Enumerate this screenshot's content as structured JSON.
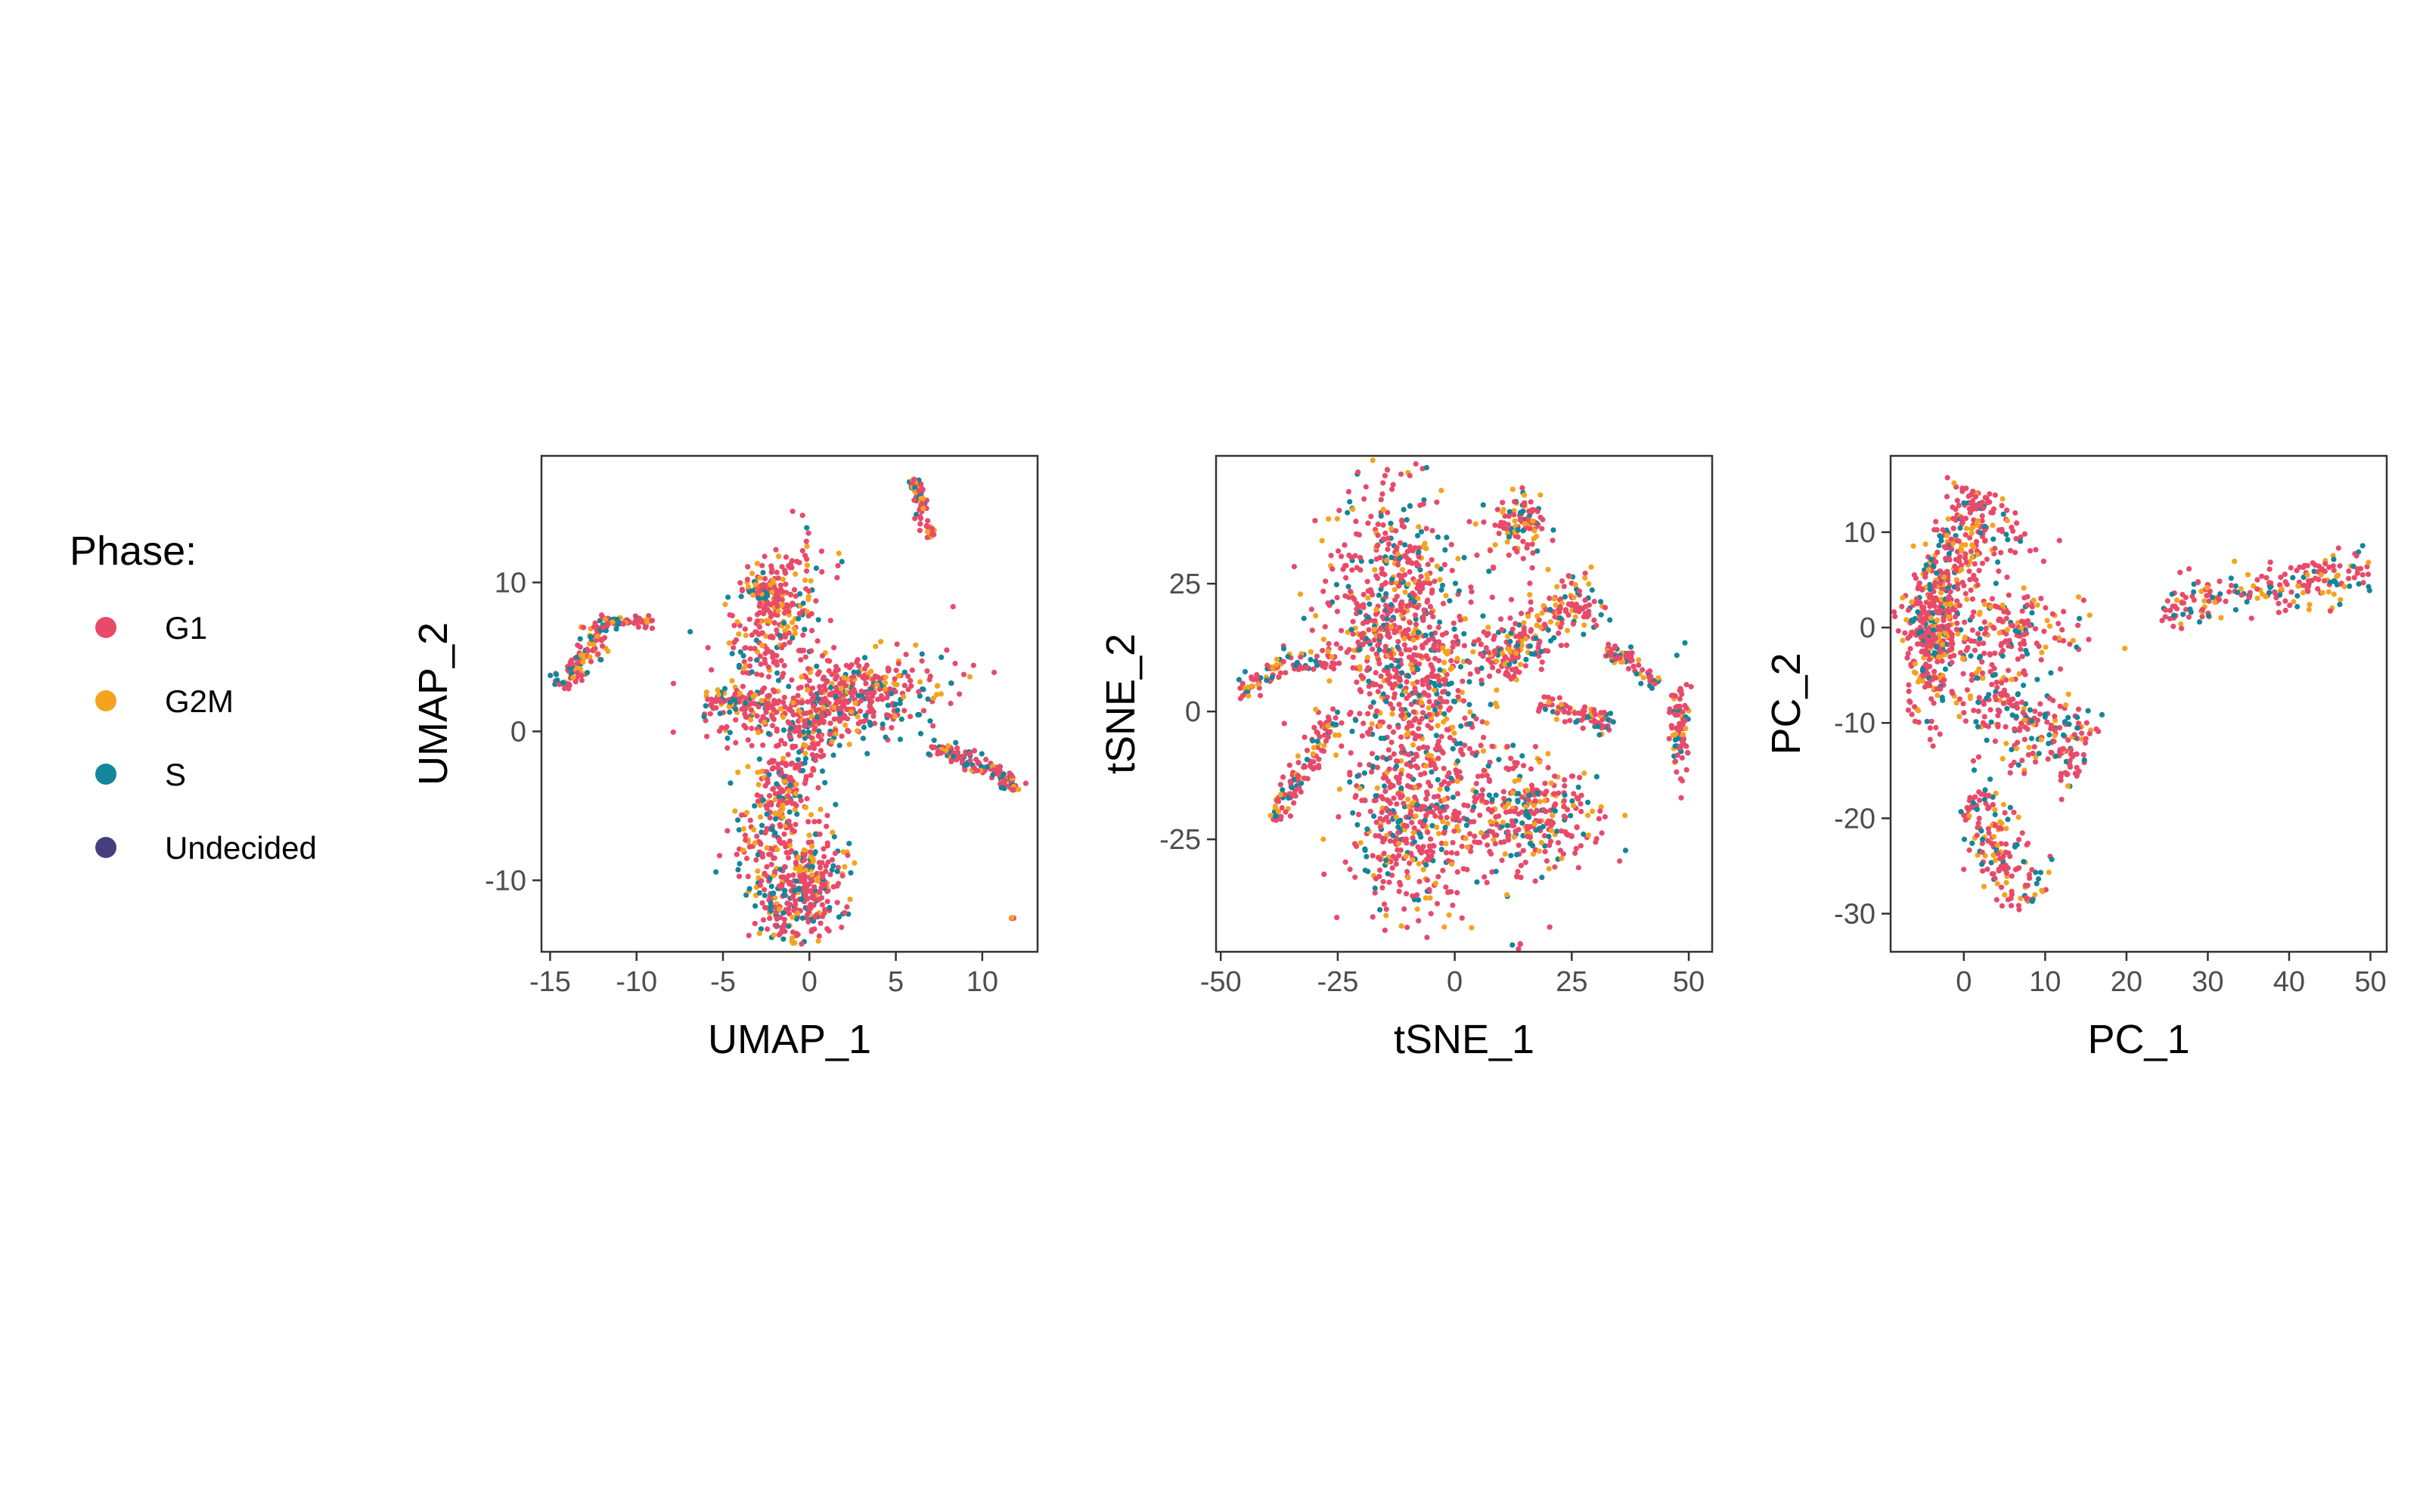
{
  "legend": {
    "title": "Phase:",
    "items": [
      {
        "label": "G1",
        "color": "#E84A6A"
      },
      {
        "label": "G2M",
        "color": "#F5A31E"
      },
      {
        "label": "S",
        "color": "#13869B"
      },
      {
        "label": "Undecided",
        "color": "#453F7C"
      }
    ]
  },
  "chart_data": [
    {
      "type": "scatter",
      "xlabel": "UMAP_1",
      "ylabel": "UMAP_2",
      "xlim": [
        -15.5,
        13.2
      ],
      "ylim": [
        -14.8,
        18.5
      ],
      "xticks": [
        -15,
        -10,
        -5,
        0,
        5,
        10
      ],
      "xtick_labels": [
        "-15",
        "-10",
        "-5",
        "0",
        "5",
        "10"
      ],
      "yticks": [
        -10,
        0,
        10
      ],
      "ytick_labels": [
        "-10",
        "0",
        "10"
      ],
      "grid": false,
      "series": [
        {
          "name": "G1",
          "color": "#E84A6A",
          "share": 0.62
        },
        {
          "name": "G2M",
          "color": "#F5A31E",
          "share": 0.19
        },
        {
          "name": "S",
          "color": "#13869B",
          "share": 0.19
        }
      ],
      "clusters": [
        {
          "shape": "blob",
          "center": [
            -2.0,
            7.5
          ],
          "spread": [
            1.2,
            2.6
          ],
          "rot": -20,
          "n": 260
        },
        {
          "shape": "blob",
          "center": [
            1.5,
            2.0
          ],
          "spread": [
            3.2,
            1.3
          ],
          "rot": 15,
          "n": 520
        },
        {
          "shape": "blob",
          "center": [
            -1.5,
            -4.0
          ],
          "spread": [
            0.9,
            3.0
          ],
          "rot": -20,
          "n": 280
        },
        {
          "shape": "blob",
          "center": [
            0.0,
            -10.0
          ],
          "spread": [
            1.1,
            1.8
          ],
          "rot": 0,
          "n": 260
        },
        {
          "shape": "blob",
          "center": [
            -1.8,
            -11.5
          ],
          "spread": [
            0.7,
            1.4
          ],
          "rot": 0,
          "n": 110
        },
        {
          "shape": "segment",
          "from": [
            -4.0,
            9.5
          ],
          "to": [
            -1.5,
            9.5
          ],
          "width": 0.4,
          "n": 60
        },
        {
          "shape": "segment",
          "from": [
            -6.0,
            2.0
          ],
          "to": [
            -2.0,
            2.0
          ],
          "width": 0.4,
          "n": 80
        },
        {
          "shape": "segment",
          "from": [
            -14.5,
            3.0
          ],
          "to": [
            -11.5,
            7.5
          ],
          "width": 0.45,
          "n": 130
        },
        {
          "shape": "segment",
          "from": [
            -11.5,
            7.5
          ],
          "to": [
            -9.0,
            7.3
          ],
          "width": 0.15,
          "n": 50
        },
        {
          "shape": "segment",
          "from": [
            6.1,
            17.0
          ],
          "to": [
            7.0,
            13.0
          ],
          "width": 0.2,
          "n": 70
        },
        {
          "shape": "segment",
          "from": [
            7.0,
            -1.0
          ],
          "to": [
            11.5,
            -3.0
          ],
          "width": 0.3,
          "n": 110
        },
        {
          "shape": "segment",
          "from": [
            11.5,
            -3.0
          ],
          "to": [
            11.8,
            -4.0
          ],
          "width": 0.3,
          "n": 30
        },
        {
          "shape": "blob",
          "center": [
            11.8,
            -12.5
          ],
          "spread": [
            0.1,
            0.1
          ],
          "rot": 0,
          "n": 3
        }
      ]
    },
    {
      "type": "scatter",
      "xlabel": "tSNE_1",
      "ylabel": "tSNE_2",
      "xlim": [
        -51,
        55
      ],
      "ylim": [
        -47,
        50
      ],
      "xticks": [
        -50,
        -25,
        0,
        25,
        50
      ],
      "xtick_labels": [
        "-50",
        "-25",
        "0",
        "25",
        "50"
      ],
      "yticks": [
        -25,
        0,
        25
      ],
      "ytick_labels": [
        "-25",
        "0",
        "25"
      ],
      "grid": false,
      "series": [
        {
          "name": "G1",
          "color": "#E84A6A",
          "share": 0.62
        },
        {
          "name": "G2M",
          "color": "#F5A31E",
          "share": 0.19
        },
        {
          "name": "S",
          "color": "#13869B",
          "share": 0.19
        }
      ],
      "clusters": [
        {
          "shape": "blob",
          "center": [
            -13,
            18
          ],
          "spread": [
            7.5,
            14
          ],
          "rot": 0,
          "n": 620
        },
        {
          "shape": "blob",
          "center": [
            -6,
            0
          ],
          "spread": [
            7,
            13
          ],
          "rot": 0,
          "n": 360
        },
        {
          "shape": "blob",
          "center": [
            -10,
            -25
          ],
          "spread": [
            6.5,
            8
          ],
          "rot": 0,
          "n": 300
        },
        {
          "shape": "blob",
          "center": [
            15,
            -20
          ],
          "spread": [
            8,
            6
          ],
          "rot": 0,
          "n": 340
        },
        {
          "shape": "blob",
          "center": [
            14,
            36
          ],
          "spread": [
            3,
            3.5
          ],
          "rot": 0,
          "n": 110
        },
        {
          "shape": "blob",
          "center": [
            12,
            12
          ],
          "spread": [
            6,
            3
          ],
          "rot": 30,
          "n": 150
        },
        {
          "shape": "blob",
          "center": [
            25,
            20
          ],
          "spread": [
            4,
            3
          ],
          "rot": 0,
          "n": 90
        },
        {
          "shape": "blob",
          "center": [
            48,
            -3
          ],
          "spread": [
            1.2,
            4.5
          ],
          "rot": 0,
          "n": 90
        },
        {
          "shape": "segment",
          "from": [
            -47,
            3
          ],
          "to": [
            -35,
            11
          ],
          "width": 1.2,
          "n": 60
        },
        {
          "shape": "segment",
          "from": [
            -34,
            9
          ],
          "to": [
            -25,
            10
          ],
          "width": 1.0,
          "n": 30
        },
        {
          "shape": "segment",
          "from": [
            -39,
            -21
          ],
          "to": [
            -25,
            -1
          ],
          "width": 1.3,
          "n": 110
        },
        {
          "shape": "segment",
          "from": [
            18,
            1
          ],
          "to": [
            34,
            -2
          ],
          "width": 1.2,
          "n": 80
        },
        {
          "shape": "segment",
          "from": [
            32,
            11
          ],
          "to": [
            38,
            11
          ],
          "width": 1.0,
          "n": 40
        },
        {
          "shape": "segment",
          "from": [
            37,
            10
          ],
          "to": [
            43,
            5
          ],
          "width": 0.8,
          "n": 25
        },
        {
          "shape": "blob",
          "center": [
            14,
            -46
          ],
          "spread": [
            0.5,
            0.5
          ],
          "rot": 0,
          "n": 4
        }
      ]
    },
    {
      "type": "scatter",
      "xlabel": "PC_1",
      "ylabel": "PC_2",
      "xlim": [
        -9,
        52
      ],
      "ylim": [
        -34,
        18
      ],
      "xticks": [
        0,
        10,
        20,
        30,
        40,
        50
      ],
      "xtick_labels": [
        "0",
        "10",
        "20",
        "30",
        "40",
        "50"
      ],
      "yticks": [
        -30,
        -20,
        -10,
        0,
        10
      ],
      "ytick_labels": [
        "-30",
        "-20",
        "-10",
        "0",
        "10"
      ],
      "grid": false,
      "series": [
        {
          "name": "G1",
          "color": "#E84A6A",
          "share": 0.62
        },
        {
          "name": "G2M",
          "color": "#F5A31E",
          "share": 0.19
        },
        {
          "name": "S",
          "color": "#13869B",
          "share": 0.19
        }
      ],
      "clusters": [
        {
          "shape": "segment",
          "from": [
            -5,
            -2
          ],
          "to": [
            2,
            14
          ],
          "width": 2.0,
          "n": 300
        },
        {
          "shape": "blob",
          "center": [
            -4,
            -2
          ],
          "spread": [
            1.5,
            4
          ],
          "rot": 0,
          "n": 260
        },
        {
          "shape": "blob",
          "center": [
            6,
            0
          ],
          "spread": [
            5,
            1.8
          ],
          "rot": 0,
          "n": 170
        },
        {
          "shape": "segment",
          "from": [
            0,
            -6
          ],
          "to": [
            15,
            -14
          ],
          "width": 2.5,
          "n": 250
        },
        {
          "shape": "segment",
          "from": [
            1,
            -17
          ],
          "to": [
            8,
            -29
          ],
          "width": 1.8,
          "n": 170
        },
        {
          "shape": "segment",
          "from": [
            24,
            2
          ],
          "to": [
            50,
            6
          ],
          "width": 1.3,
          "n": 210
        },
        {
          "shape": "blob",
          "center": [
            5,
            9
          ],
          "spread": [
            2.5,
            3
          ],
          "rot": 0,
          "n": 40
        }
      ]
    }
  ]
}
